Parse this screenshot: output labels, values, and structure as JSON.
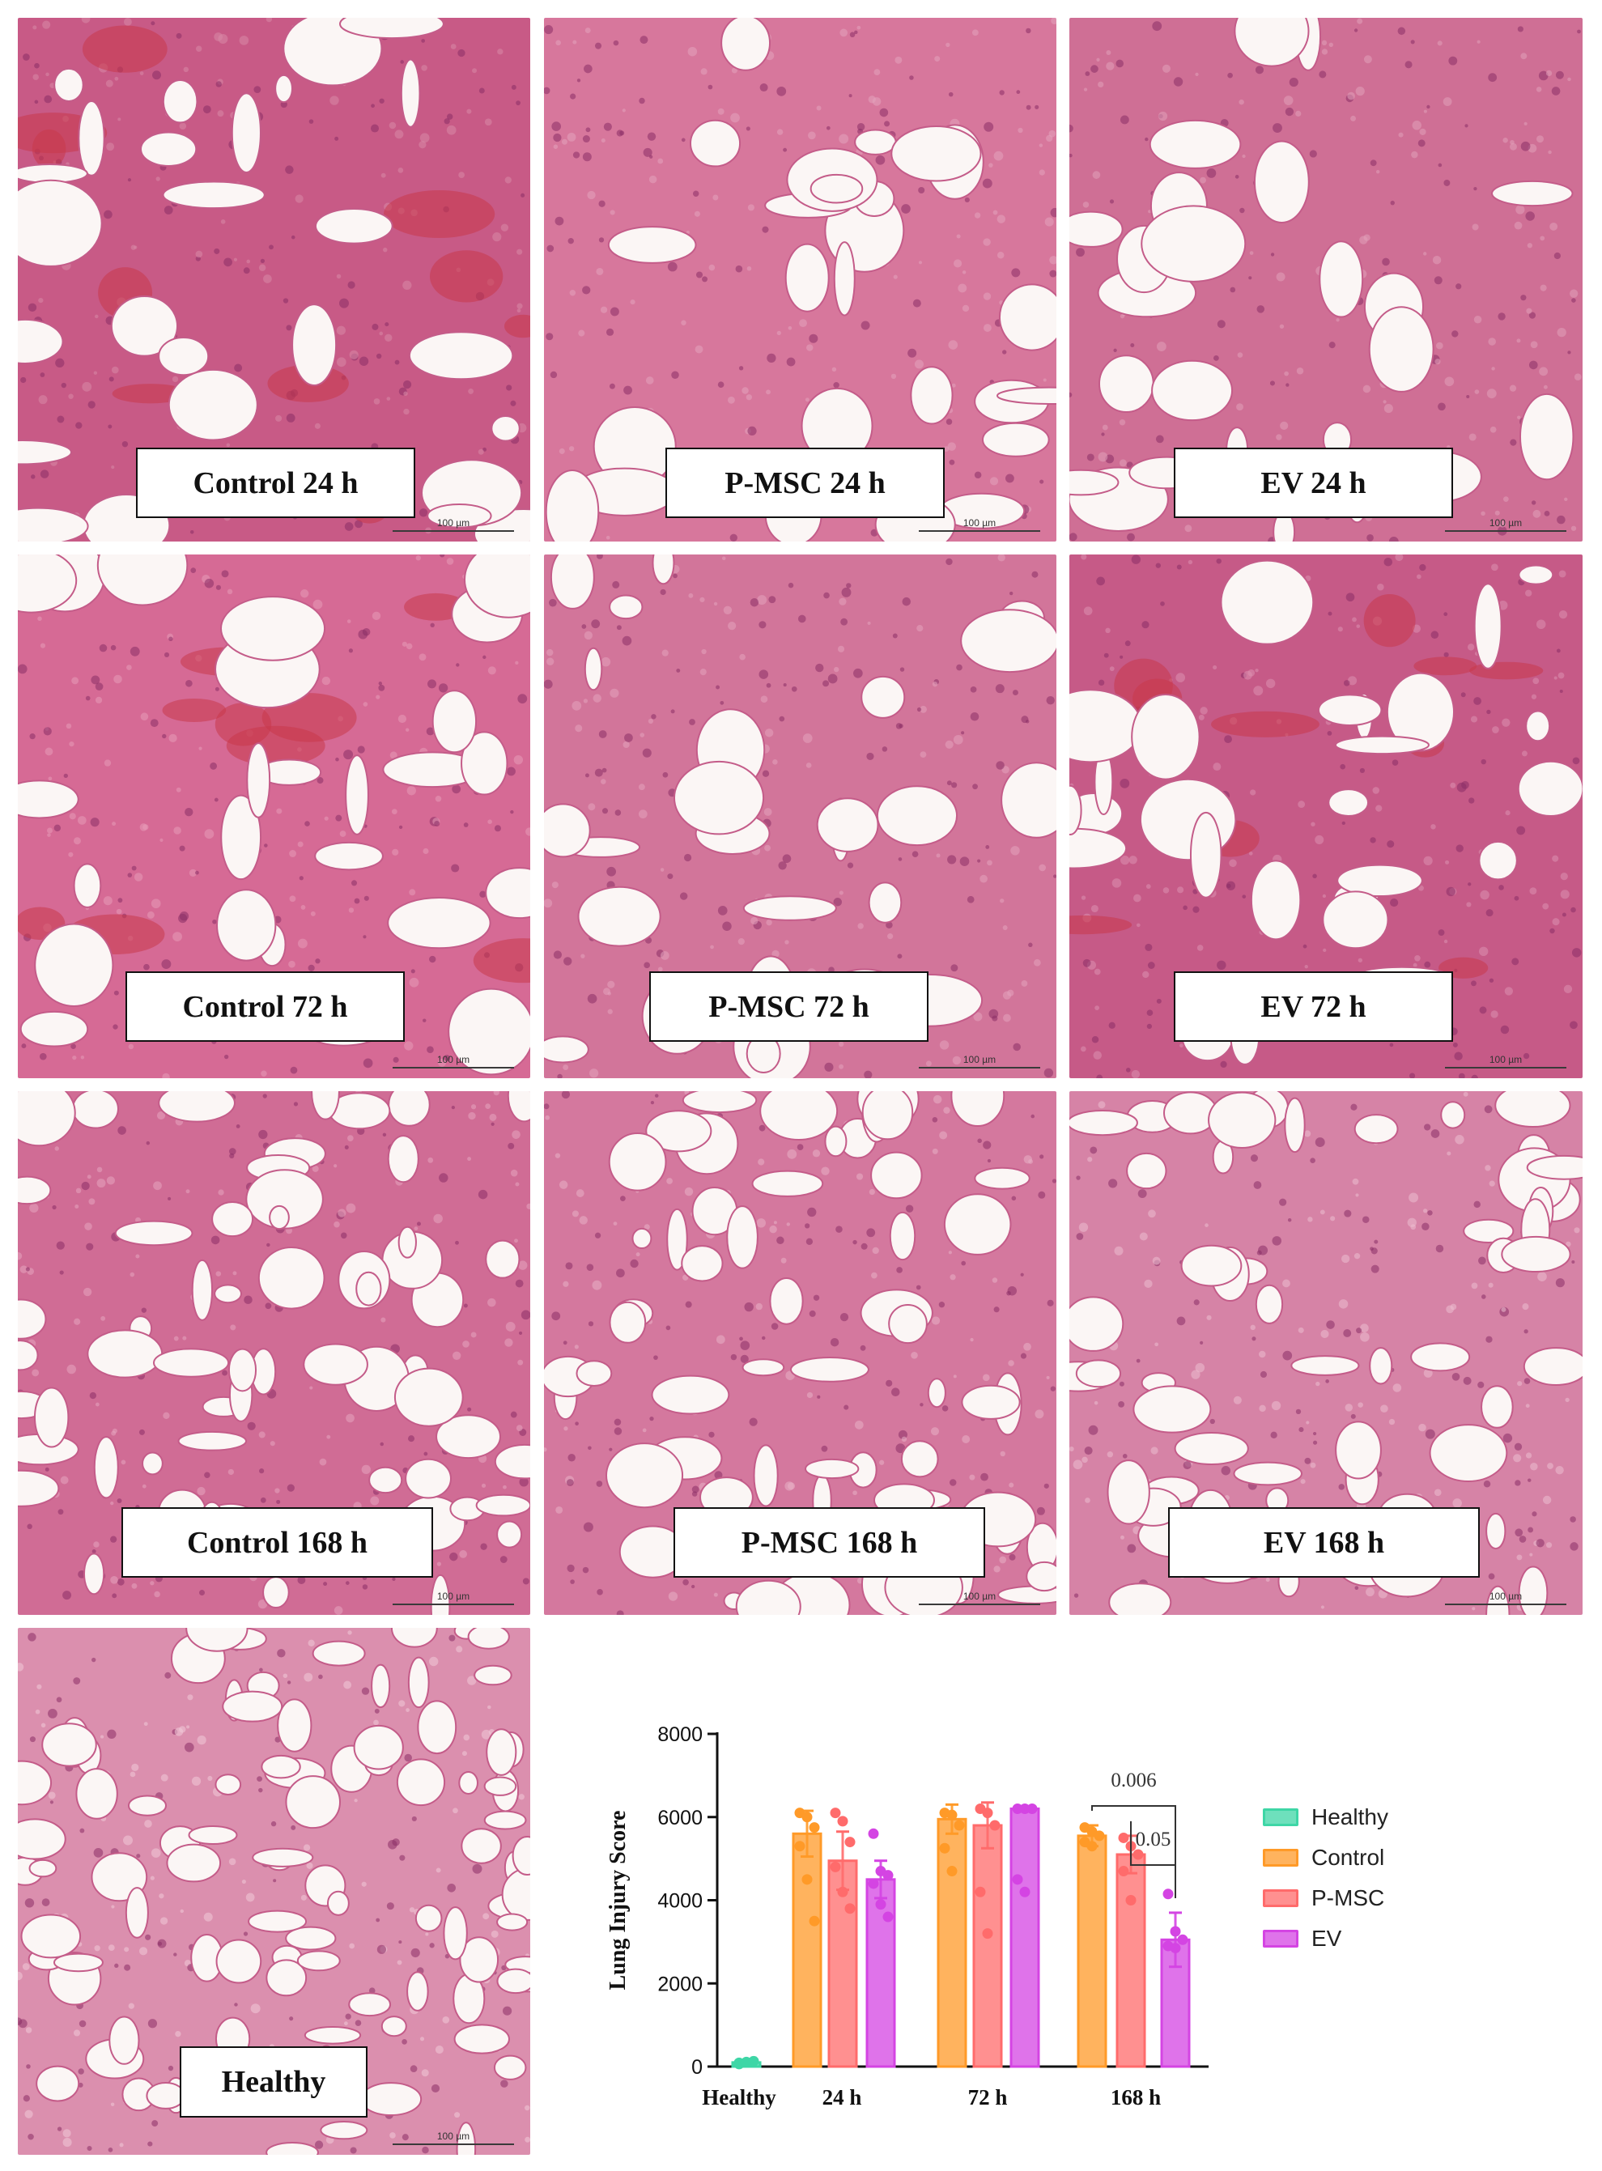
{
  "panels": [
    {
      "label": "Control 24 h",
      "scale": "100 µm",
      "tint": "#c85a86",
      "tint2": "#d98aa8",
      "blood": true
    },
    {
      "label": "P-MSC 24 h",
      "scale": "100 µm",
      "tint": "#d7779c",
      "tint2": "#e4a4bd",
      "blood": false
    },
    {
      "label": "EV 24 h",
      "scale": "100 µm",
      "tint": "#cf6f95",
      "tint2": "#e2a0b9",
      "blood": false
    },
    {
      "label": "Control 72 h",
      "scale": "100 µm",
      "tint": "#d66a95",
      "tint2": "#e79ab8",
      "blood": true
    },
    {
      "label": "P-MSC 72 h",
      "scale": "100 µm",
      "tint": "#d2759a",
      "tint2": "#e3a3bd",
      "blood": false
    },
    {
      "label": "EV 72 h",
      "scale": "100 µm",
      "tint": "#c65a87",
      "tint2": "#dc92b0",
      "blood": true
    },
    {
      "label": "Control 168 h",
      "scale": "100 µm",
      "tint": "#d06c95",
      "tint2": "#e6a6bf",
      "blood": false
    },
    {
      "label": "P-MSC 168 h",
      "scale": "100 µm",
      "tint": "#d4789e",
      "tint2": "#e8b0c6",
      "blood": false
    },
    {
      "label": "EV 168 h",
      "scale": "100 µm",
      "tint": "#d683a6",
      "tint2": "#ecbed0",
      "blood": false
    },
    {
      "label": "Healthy",
      "scale": "100 µm",
      "tint": "#db8fae",
      "tint2": "#f0cad8",
      "blood": false
    }
  ],
  "chart_data": {
    "type": "bar",
    "ylabel": "Lung Injury Score",
    "xlabel": "",
    "ylim": [
      0,
      8000
    ],
    "yticks": [
      0,
      2000,
      4000,
      6000,
      8000
    ],
    "groups": [
      "Healthy",
      "24 h",
      "72 h",
      "168 h"
    ],
    "series": [
      {
        "name": "Healthy",
        "color": "#3ed6a6",
        "values": [
          100,
          null,
          null,
          null
        ],
        "points": [
          [
            60,
            100,
            130,
            90,
            110
          ],
          [],
          [],
          []
        ]
      },
      {
        "name": "Control",
        "color": "#ff9a28",
        "values": [
          null,
          5600,
          5950,
          5550
        ],
        "errors": [
          null,
          550,
          350,
          250
        ],
        "points": [
          [],
          [
            6100,
            6000,
            5750,
            5300,
            4500,
            3500
          ],
          [
            6100,
            6050,
            5800,
            5250,
            4700
          ],
          [
            5750,
            5650,
            5550,
            5400,
            5300
          ]
        ]
      },
      {
        "name": "P-MSC",
        "color": "#ff6b6b",
        "values": [
          null,
          4950,
          5800,
          5100
        ],
        "errors": [
          null,
          700,
          550,
          450
        ],
        "points": [
          [],
          [
            6100,
            5900,
            5400,
            4800,
            4200,
            3800
          ],
          [
            6200,
            6100,
            5800,
            4200,
            3200
          ],
          [
            5500,
            5300,
            5100,
            4700,
            4000
          ]
        ]
      },
      {
        "name": "EV",
        "color": "#d444e3",
        "values": [
          null,
          4500,
          6200,
          3050
        ],
        "errors": [
          null,
          450,
          0,
          650
        ],
        "points": [
          [],
          [
            5600,
            4700,
            4600,
            4400,
            3900,
            3600
          ],
          [
            6200,
            6200,
            6200,
            4500,
            4200
          ],
          [
            4150,
            3250,
            3050,
            2900,
            2850
          ]
        ]
      }
    ],
    "annotations": [
      {
        "text": "0.006",
        "from_group": "168 h",
        "from_series": "Control",
        "to_series": "EV"
      },
      {
        "text": "0.05",
        "from_group": "168 h",
        "from_series": "P-MSC",
        "to_series": "EV"
      }
    ],
    "legend_position": "right"
  }
}
